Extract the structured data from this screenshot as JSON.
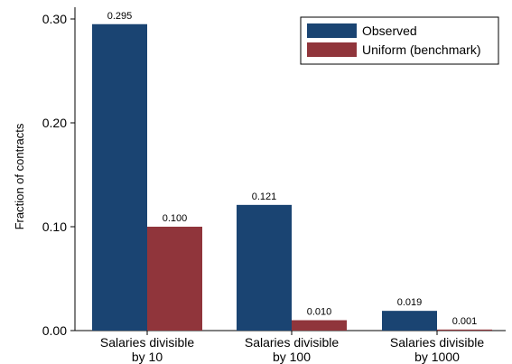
{
  "chart_data": {
    "type": "bar",
    "title": "",
    "xlabel": "",
    "ylabel": "Fraction of contracts",
    "ylim": [
      0,
      0.31
    ],
    "yticks": [
      "0.00",
      "0.10",
      "0.20",
      "0.30"
    ],
    "ytick_values": [
      0,
      0.1,
      0.2,
      0.3
    ],
    "grid": false,
    "legend_position": "top-right",
    "categories": [
      [
        "Salaries divisible",
        "by 10"
      ],
      [
        "Salaries divisible",
        "by 100"
      ],
      [
        "Salaries divisible",
        "by 1000"
      ]
    ],
    "series": [
      {
        "name": "Observed",
        "color": "#1a4472",
        "values": [
          0.295,
          0.121,
          0.019
        ],
        "labels": [
          "0.295",
          "0.121",
          "0.019"
        ]
      },
      {
        "name": "Uniform (benchmark)",
        "color": "#90353b",
        "values": [
          0.1,
          0.01,
          0.001
        ],
        "labels": [
          "0.100",
          "0.010",
          "0.001"
        ]
      }
    ]
  }
}
